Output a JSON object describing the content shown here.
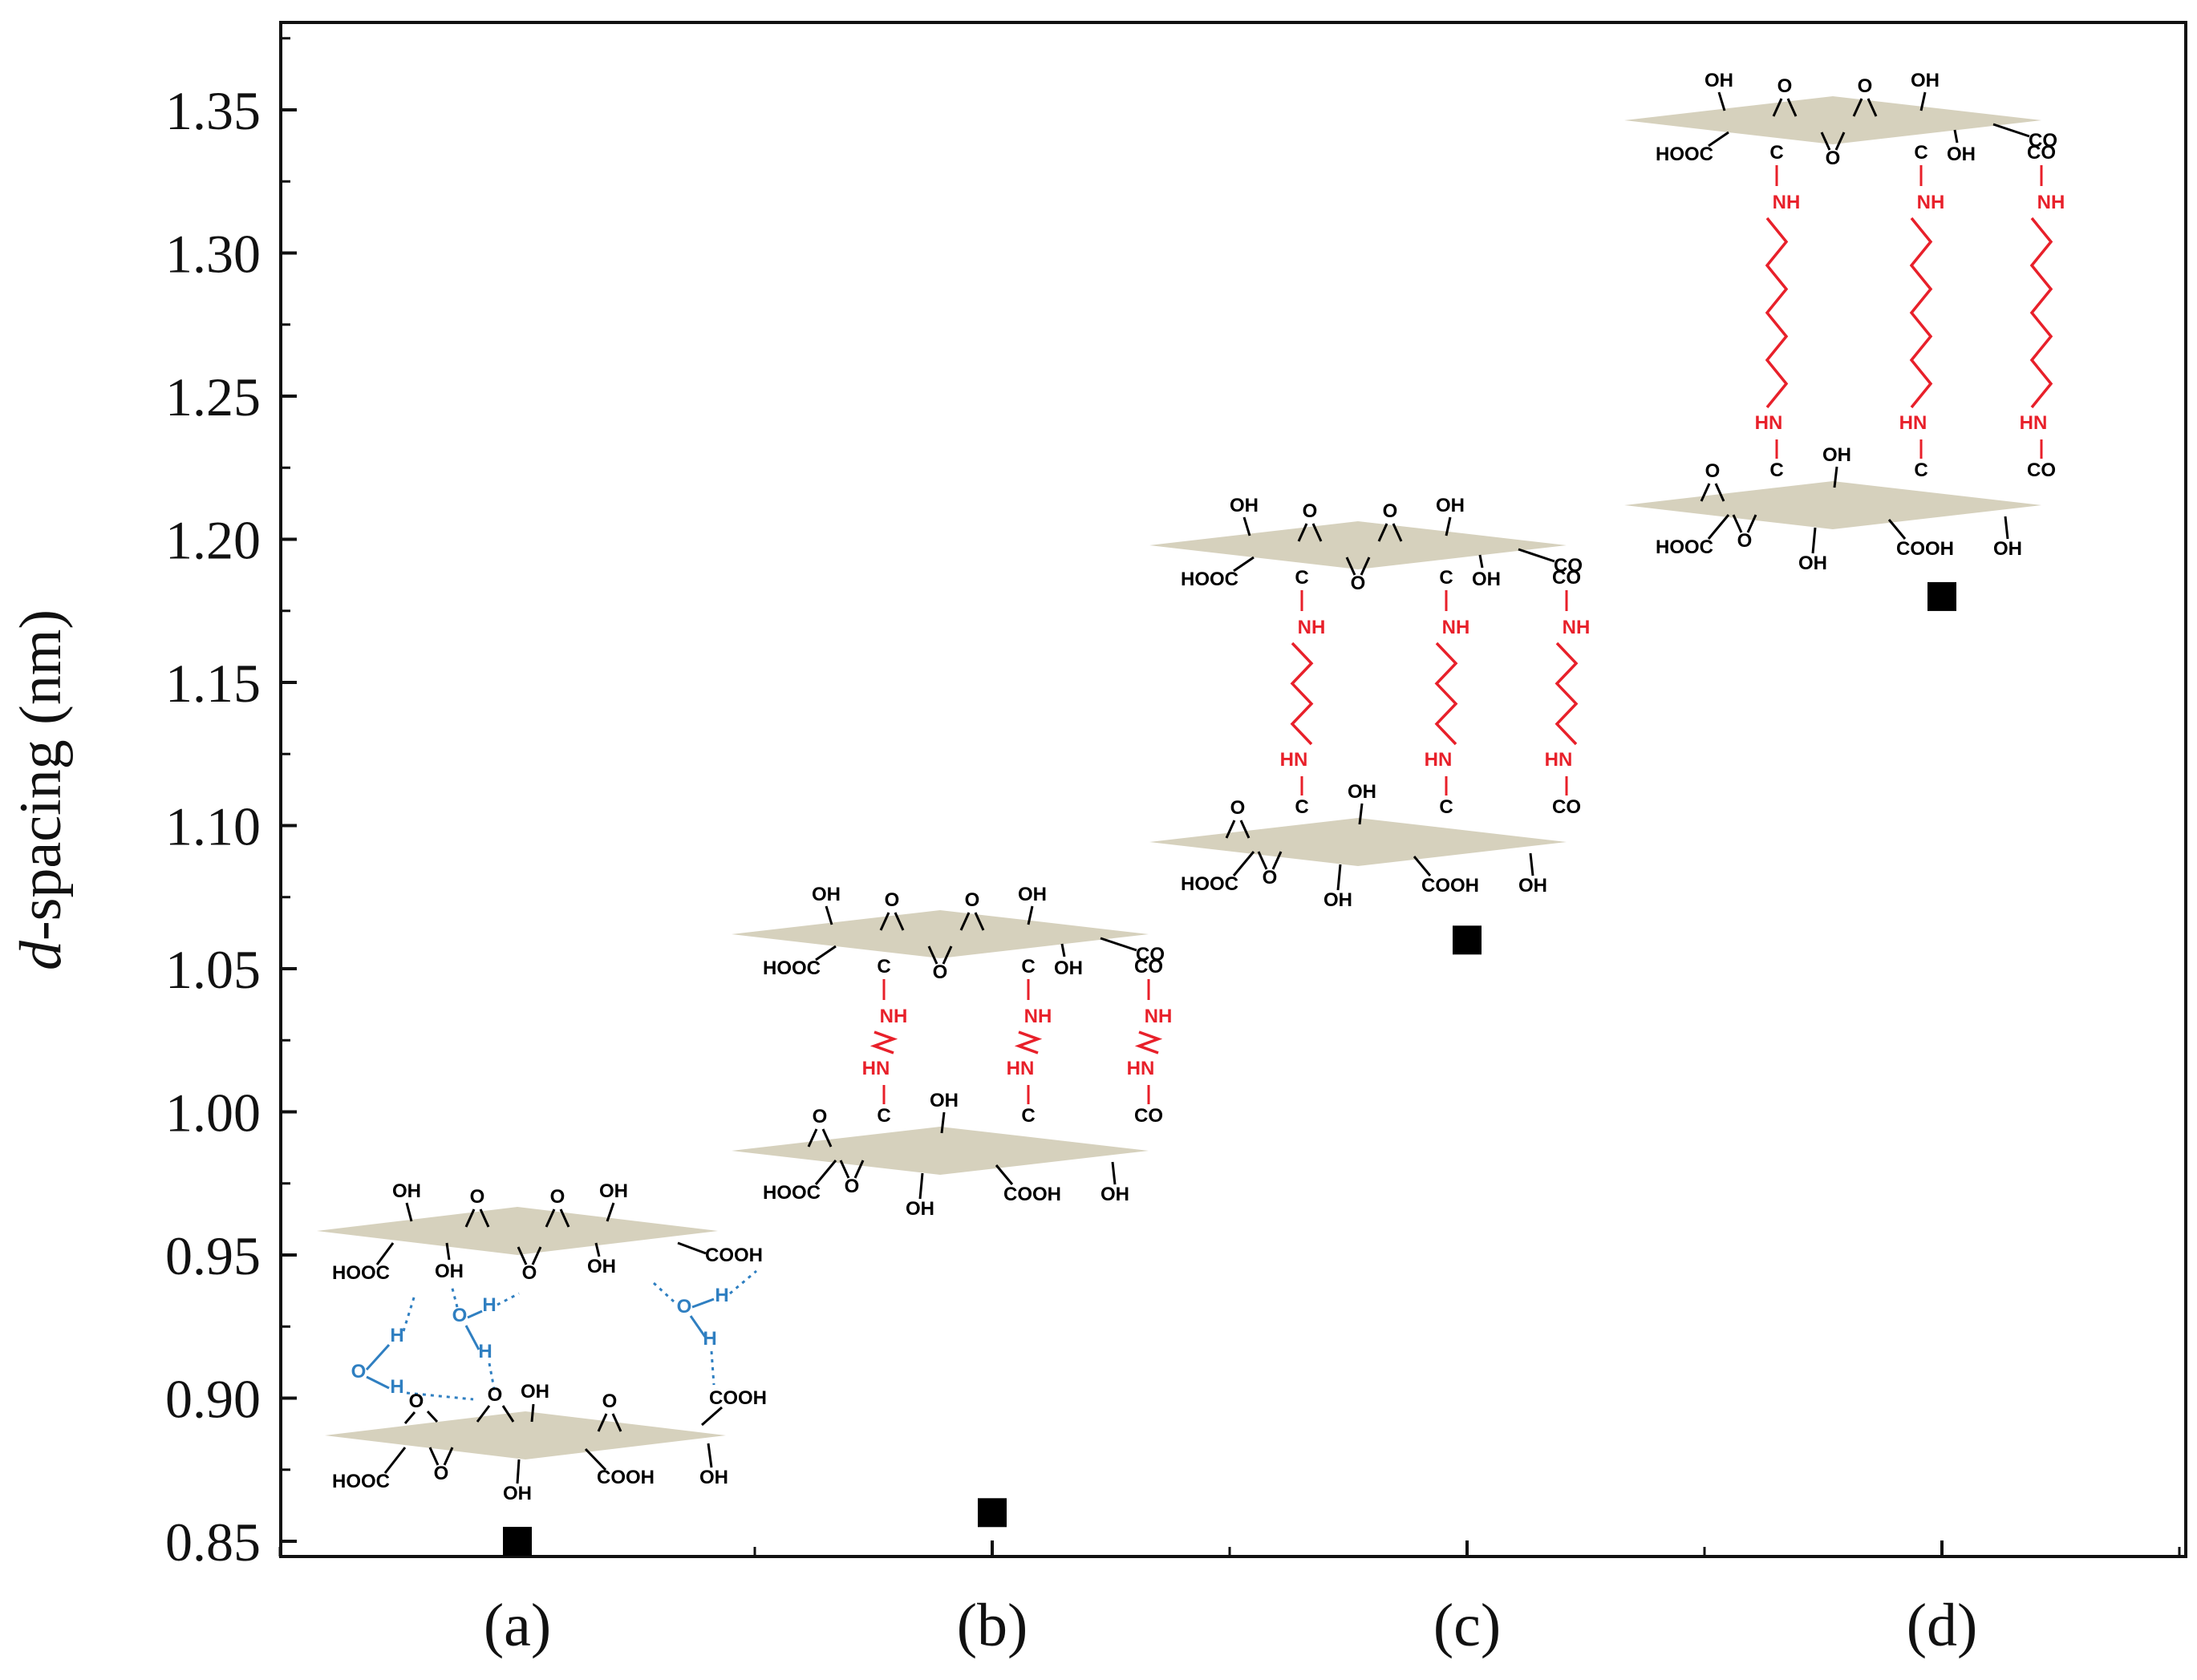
{
  "chart_data": {
    "type": "scatter",
    "title": "",
    "xlabel": "",
    "ylabel_italic": "d",
    "ylabel_rest": "-spacing (nm)",
    "categories": [
      "(a)",
      "(b)",
      "(c)",
      "(d)"
    ],
    "values": [
      0.85,
      0.86,
      1.06,
      1.18
    ],
    "ylim": [
      0.85,
      1.38
    ],
    "yticks": [
      "0.85",
      "0.90",
      "0.95",
      "1.00",
      "1.05",
      "1.10",
      "1.15",
      "1.20",
      "1.25",
      "1.30",
      "1.35"
    ],
    "ytick_values": [
      0.85,
      0.9,
      0.95,
      1.0,
      1.05,
      1.1,
      1.15,
      1.2,
      1.25,
      1.3,
      1.35
    ],
    "marker": "square",
    "marker_color": "#000000",
    "grid": false
  },
  "colors": {
    "sheet": "#d6d1bd",
    "linker": "#e8202a",
    "water": "#2f7fc1",
    "black": "#000000"
  },
  "chem_labels": {
    "OH": "OH",
    "O": "O",
    "C": "C",
    "H": "H",
    "HOOC": "HOOC",
    "COOH": "COOH",
    "CO": "CO",
    "NH": "NH",
    "HN": "HN"
  }
}
